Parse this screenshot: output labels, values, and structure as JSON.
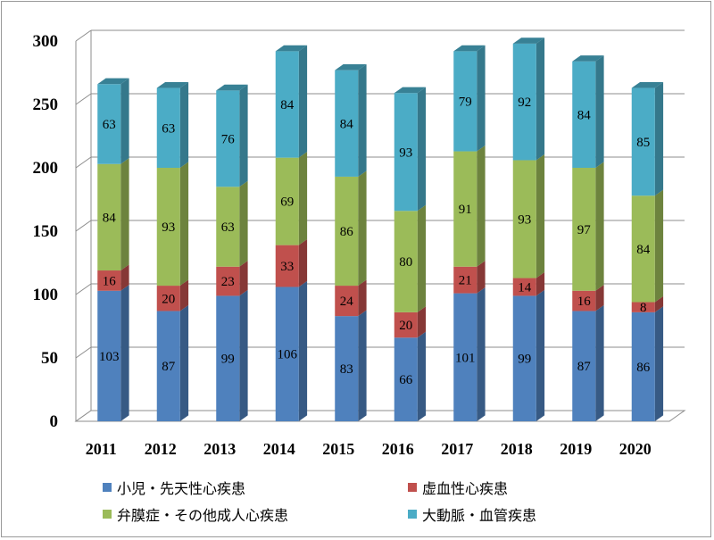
{
  "chart_data": {
    "type": "bar",
    "stacked": true,
    "style": "3d-column",
    "categories": [
      "2011",
      "2012",
      "2013",
      "2014",
      "2015",
      "2016",
      "2017",
      "2018",
      "2019",
      "2020"
    ],
    "series": [
      {
        "name": "小児・先天性心疾患",
        "color": "#4f81bd",
        "values": [
          103,
          87,
          99,
          106,
          83,
          66,
          101,
          99,
          87,
          86
        ]
      },
      {
        "name": "虚血性心疾患",
        "color": "#c0504d",
        "values": [
          16,
          20,
          23,
          33,
          24,
          20,
          21,
          14,
          16,
          8
        ]
      },
      {
        "name": "弁膜症・その他成人心疾患",
        "color": "#9bbb59",
        "values": [
          84,
          93,
          63,
          69,
          86,
          80,
          91,
          93,
          97,
          84
        ]
      },
      {
        "name": "大動脈・血管疾患",
        "color": "#4bacc6",
        "values": [
          63,
          63,
          76,
          84,
          84,
          93,
          79,
          92,
          84,
          85
        ]
      }
    ],
    "ylim": [
      0,
      300
    ],
    "yticks": [
      "0",
      "50",
      "100",
      "150",
      "200",
      "250",
      "300"
    ],
    "grid": true,
    "legend_position": "bottom"
  }
}
